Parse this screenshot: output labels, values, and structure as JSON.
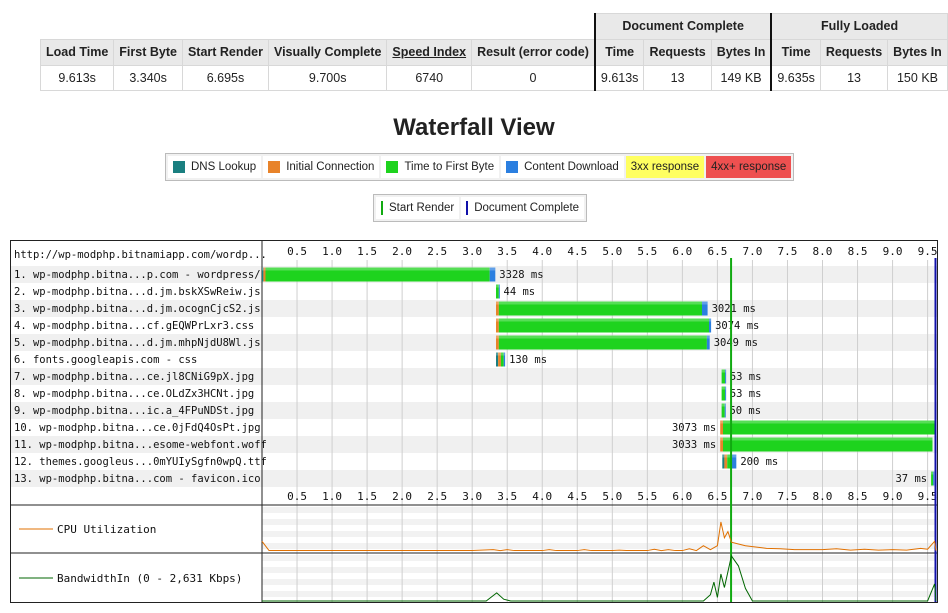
{
  "summary": {
    "group_document": "Document Complete",
    "group_fully": "Fully Loaded",
    "headers": [
      "Load Time",
      "First Byte",
      "Start Render",
      "Visually Complete",
      "Speed Index",
      "Result (error code)",
      "Time",
      "Requests",
      "Bytes In",
      "Time",
      "Requests",
      "Bytes In"
    ],
    "values": [
      "9.613s",
      "3.340s",
      "6.695s",
      "9.700s",
      "6740",
      "0",
      "9.613s",
      "13",
      "149 KB",
      "9.635s",
      "13",
      "150 KB"
    ]
  },
  "waterfall_title": "Waterfall View",
  "legend": {
    "items": [
      {
        "label": "DNS Lookup",
        "color": "#1a7f80"
      },
      {
        "label": "Initial Connection",
        "color": "#e8832a"
      },
      {
        "label": "Time to First Byte",
        "color": "#1ed31e"
      },
      {
        "label": "Content Download",
        "color": "#2b7fe0"
      },
      {
        "label": "3xx response",
        "color": "#ffff60"
      },
      {
        "label": "4xx+ response",
        "color": "#ee5050"
      }
    ],
    "start_render": "Start Render",
    "document_complete": "Document Complete",
    "start_render_color": "#11aa11",
    "document_complete_color": "#1111aa"
  },
  "waterfall": {
    "page_url": "http://wp-modphp.bitnamiapp.com/wordp...",
    "ticks": [
      "0.5",
      "1.0",
      "1.5",
      "2.0",
      "2.5",
      "3.0",
      "3.5",
      "4.0",
      "4.5",
      "5.0",
      "5.5",
      "6.0",
      "6.5",
      "7.0",
      "7.5",
      "8.0",
      "8.5",
      "9.0",
      "9.5"
    ],
    "start_render_s": 6.695,
    "document_complete_s": 9.613,
    "axis_max_s": 9.62,
    "requests": [
      {
        "label": "1. wp-modphp.bitna...p.com - wordpress/",
        "start": 0.0,
        "dns": 0.02,
        "conn": 0.03,
        "ttfb": 3.2,
        "dl": 0.08,
        "time": "3328 ms",
        "time_side": "right"
      },
      {
        "label": "2. wp-modphp.bitna...d.jm.bskXSwReiw.js",
        "start": 3.34,
        "dns": 0,
        "conn": 0,
        "ttfb": 0.04,
        "dl": 0.01,
        "time": "44 ms",
        "time_side": "right"
      },
      {
        "label": "3. wp-modphp.bitna...d.jm.ocognCjcS2.js",
        "start": 3.34,
        "dns": 0,
        "conn": 0.04,
        "ttfb": 2.9,
        "dl": 0.08,
        "time": "3021 ms",
        "time_side": "right"
      },
      {
        "label": "4. wp-modphp.bitna...cf.gEQWPrLxr3.css",
        "start": 3.34,
        "dns": 0,
        "conn": 0.04,
        "ttfb": 3.0,
        "dl": 0.03,
        "time": "3074 ms",
        "time_side": "right"
      },
      {
        "label": "5. wp-modphp.bitna...d.jm.mhpNjdU8Wl.js",
        "start": 3.34,
        "dns": 0,
        "conn": 0.04,
        "ttfb": 2.97,
        "dl": 0.04,
        "time": "3049 ms",
        "time_side": "right"
      },
      {
        "label": "6. fonts.googleapis.com - css",
        "start": 3.34,
        "dns": 0.03,
        "conn": 0.04,
        "ttfb": 0.04,
        "dl": 0.02,
        "time": "130 ms",
        "time_side": "right"
      },
      {
        "label": "7. wp-modphp.bitna...ce.jl8CNiG9pX.jpg",
        "start": 6.56,
        "dns": 0,
        "conn": 0,
        "ttfb": 0.05,
        "dl": 0.01,
        "time": "53 ms",
        "time_side": "right"
      },
      {
        "label": "8. wp-modphp.bitna...ce.OLdZx3HCNt.jpg",
        "start": 6.56,
        "dns": 0,
        "conn": 0,
        "ttfb": 0.05,
        "dl": 0.01,
        "time": "53 ms",
        "time_side": "right"
      },
      {
        "label": "9. wp-modphp.bitna...ic.a_4FPuNDSt.jpg",
        "start": 6.56,
        "dns": 0,
        "conn": 0,
        "ttfb": 0.045,
        "dl": 0.01,
        "time": "50 ms",
        "time_side": "right"
      },
      {
        "label": "10. wp-modphp.bitna...ce.0jFdQ4OsPt.jpg",
        "start": 6.54,
        "dns": 0,
        "conn": 0.04,
        "ttfb": 3.03,
        "dl": 0,
        "time": "3073 ms",
        "time_side": "left"
      },
      {
        "label": "11. wp-modphp.bitna...esome-webfont.woff",
        "start": 6.54,
        "dns": 0,
        "conn": 0.04,
        "ttfb": 2.99,
        "dl": 0,
        "time": "3033 ms",
        "time_side": "left"
      },
      {
        "label": "12. themes.googleus...0mYUIySgfn0wpQ.ttf",
        "start": 6.57,
        "dns": 0.03,
        "conn": 0.04,
        "ttfb": 0.05,
        "dl": 0.08,
        "time": "200 ms",
        "time_side": "right"
      },
      {
        "label": "13. wp-modphp.bitna...com - favicon.ico",
        "start": 9.55,
        "dns": 0,
        "conn": 0,
        "ttfb": 0.03,
        "dl": 0.007,
        "time": "37 ms",
        "time_side": "left"
      }
    ],
    "cpu_label": "CPU Utilization",
    "cpu_color": "#e07000",
    "bandwidth_label": "BandwidthIn (0 - 2,631 Kbps)",
    "bandwidth_color": "#006600",
    "cpu_series": [
      [
        0.0,
        22
      ],
      [
        0.1,
        1
      ],
      [
        3.0,
        1
      ],
      [
        3.3,
        3
      ],
      [
        3.4,
        1
      ],
      [
        3.5,
        3
      ],
      [
        3.6,
        1
      ],
      [
        4.0,
        1
      ],
      [
        4.1,
        3
      ],
      [
        4.2,
        1
      ],
      [
        4.5,
        1
      ],
      [
        4.6,
        3
      ],
      [
        4.7,
        1
      ],
      [
        5.0,
        1
      ],
      [
        5.1,
        2
      ],
      [
        5.2,
        1
      ],
      [
        5.5,
        1
      ],
      [
        5.6,
        4
      ],
      [
        5.7,
        1
      ],
      [
        5.8,
        3
      ],
      [
        5.9,
        1
      ],
      [
        6.0,
        1
      ],
      [
        6.1,
        5
      ],
      [
        6.2,
        1
      ],
      [
        6.3,
        12
      ],
      [
        6.4,
        3
      ],
      [
        6.5,
        12
      ],
      [
        6.55,
        66
      ],
      [
        6.6,
        30
      ],
      [
        6.65,
        44
      ],
      [
        6.7,
        20
      ],
      [
        6.8,
        16
      ],
      [
        6.9,
        12
      ],
      [
        7.0,
        10
      ],
      [
        7.2,
        6
      ],
      [
        7.4,
        5
      ],
      [
        7.6,
        3
      ],
      [
        8.0,
        3
      ],
      [
        8.2,
        5
      ],
      [
        8.4,
        2
      ],
      [
        8.6,
        4
      ],
      [
        8.8,
        2
      ],
      [
        9.0,
        3
      ],
      [
        9.2,
        2
      ],
      [
        9.4,
        6
      ],
      [
        9.5,
        4
      ],
      [
        9.6,
        22
      ],
      [
        9.62,
        1
      ]
    ],
    "bandwidth_series": [
      [
        0.0,
        0
      ],
      [
        3.2,
        0
      ],
      [
        3.35,
        18
      ],
      [
        3.45,
        4
      ],
      [
        3.55,
        0
      ],
      [
        6.3,
        0
      ],
      [
        6.4,
        14
      ],
      [
        6.45,
        42
      ],
      [
        6.5,
        8
      ],
      [
        6.55,
        60
      ],
      [
        6.6,
        30
      ],
      [
        6.7,
        100
      ],
      [
        6.8,
        78
      ],
      [
        6.9,
        28
      ],
      [
        7.0,
        0
      ],
      [
        9.5,
        0
      ],
      [
        9.6,
        38
      ],
      [
        9.62,
        0
      ]
    ]
  }
}
